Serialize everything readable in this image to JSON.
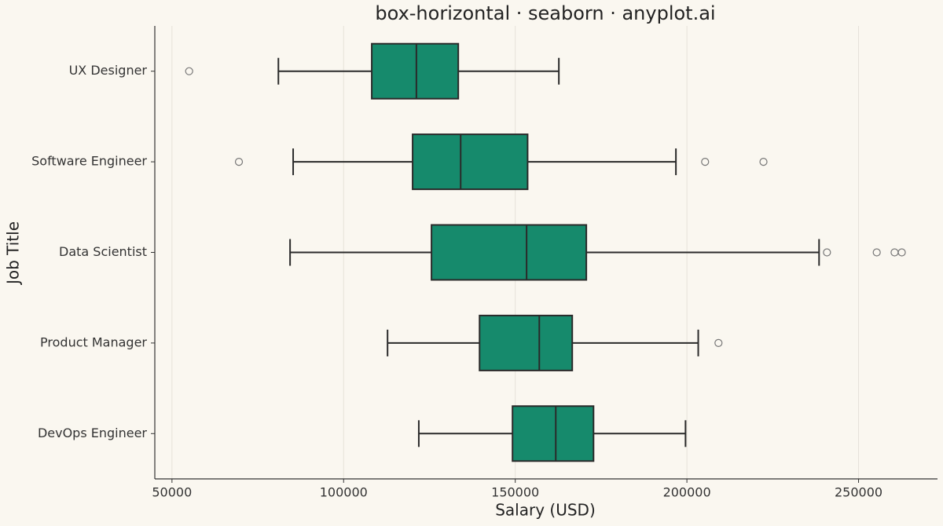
{
  "chart_data": {
    "type": "box",
    "orientation": "horizontal",
    "title": "box-horizontal · seaborn · anyplot.ai",
    "x_label": "Salary (USD)",
    "y_label": "Job Title",
    "categories": [
      "UX Designer",
      "Software Engineer",
      "Data Scientist",
      "Product Manager",
      "DevOps Engineer"
    ],
    "boxes": [
      {
        "min": 81000,
        "q1": 108200,
        "median": 121200,
        "q3": 133400,
        "max": 162700,
        "outliers": [
          55000
        ]
      },
      {
        "min": 85300,
        "q1": 120100,
        "median": 134100,
        "q3": 153600,
        "max": 196800,
        "outliers": [
          69500,
          205300,
          222300
        ]
      },
      {
        "min": 84400,
        "q1": 125600,
        "median": 153300,
        "q3": 170700,
        "max": 238500,
        "outliers": [
          240800,
          255300,
          260500,
          262600
        ]
      },
      {
        "min": 112800,
        "q1": 139600,
        "median": 157000,
        "q3": 166600,
        "max": 203300,
        "outliers": [
          209200
        ]
      },
      {
        "min": 121900,
        "q1": 149200,
        "median": 161800,
        "q3": 172800,
        "max": 199600,
        "outliers": []
      }
    ],
    "color": "#168a6c",
    "xlim": [
      45000,
      273000
    ],
    "xticks": [
      50000,
      100000,
      150000,
      200000,
      250000
    ],
    "grid": true
  }
}
